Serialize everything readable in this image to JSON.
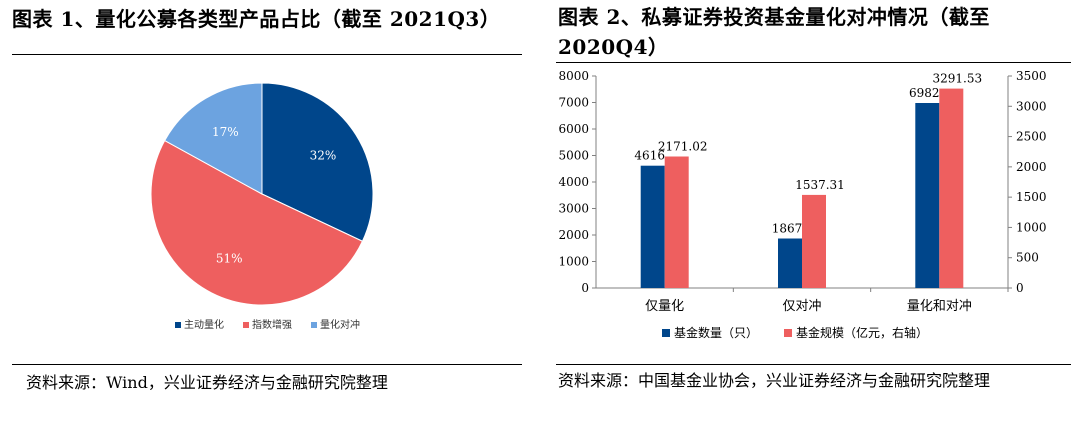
{
  "left": {
    "title": "图表 1、量化公募各类型产品占比（截至 2021Q3）",
    "source": "资料来源：Wind，兴业证券经济与金融研究院整理",
    "chart_data": {
      "type": "pie",
      "title": "量化公募各类型产品占比（截至 2021Q3）",
      "slices": [
        {
          "label": "主动量化",
          "value": 32,
          "display": "32%",
          "color": "#00468B"
        },
        {
          "label": "指数增强",
          "value": 51,
          "display": "51%",
          "color": "#EE5F5F"
        },
        {
          "label": "量化对冲",
          "value": 17,
          "display": "17%",
          "color": "#6CA3E0"
        }
      ],
      "legend_position": "bottom"
    }
  },
  "right": {
    "title": "图表 2、私募证券投资基金量化对冲情况（截至 2020Q4）",
    "source": "资料来源：中国基金业协会，兴业证券经济与金融研究院整理",
    "chart_data": {
      "type": "bar",
      "title": "私募证券投资基金量化对冲情况（截至 2020Q4）",
      "categories": [
        "仅量化",
        "仅对冲",
        "量化和对冲"
      ],
      "series": [
        {
          "name": "基金数量（只）",
          "axis": "left",
          "color": "#00468B",
          "values": [
            4616,
            1867,
            6982
          ],
          "labels": [
            "4616",
            "1867",
            "6982"
          ]
        },
        {
          "name": "基金规模（亿元，右轴）",
          "axis": "right",
          "color": "#EE5F5F",
          "values": [
            2171.02,
            1537.31,
            3291.53
          ],
          "labels": [
            "2171.02",
            "1537.31",
            "3291.53"
          ]
        }
      ],
      "ylim_left": [
        0,
        8000
      ],
      "yticks_left": [
        "0",
        "1000",
        "2000",
        "3000",
        "4000",
        "5000",
        "6000",
        "7000",
        "8000"
      ],
      "ylim_right": [
        0,
        3500
      ],
      "yticks_right": [
        "0",
        "500",
        "1000",
        "1500",
        "2000",
        "2500",
        "3000",
        "3500"
      ],
      "legend_position": "bottom"
    }
  }
}
